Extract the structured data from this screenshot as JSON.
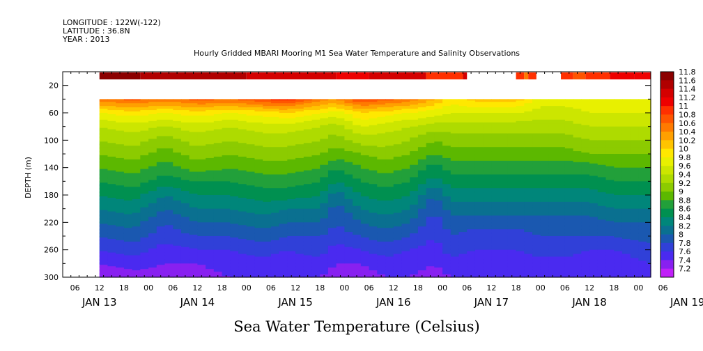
{
  "header": {
    "longitude": "LONGITUDE : 122W(-122)",
    "latitude": "LATITUDE : 36.8N",
    "year": "YEAR : 2013"
  },
  "chart_data": {
    "type": "heatmap",
    "title": "Hourly Gridded MBARI Mooring M1 Sea Water Temperature and Salinity Observations",
    "xlabel": "",
    "ylabel": "DEPTH (m)",
    "colorbar_title": "Sea Water Temperature (Celsius)",
    "x_hour_ticks": [
      "06",
      "12",
      "18",
      "00",
      "06",
      "12",
      "18",
      "00",
      "06",
      "12",
      "18",
      "00",
      "06",
      "12",
      "18",
      "00",
      "06",
      "12",
      "18",
      "00",
      "06",
      "12",
      "18",
      "00",
      "06"
    ],
    "x_day_labels": [
      "JAN 13",
      "JAN 14",
      "JAN 15",
      "JAN 16",
      "JAN 17",
      "JAN 18",
      "JAN 19"
    ],
    "x_range_hours_from_jan12_00": [
      3,
      147
    ],
    "data_start_hour": 12,
    "data_end_hour": 147,
    "y_ticks": [
      "20",
      "60",
      "100",
      "140",
      "180",
      "220",
      "260",
      "300"
    ],
    "ylim": [
      300,
      0
    ],
    "depth_levels_m": [
      10,
      40,
      60,
      80,
      100,
      120,
      140,
      160,
      180,
      200,
      220,
      240,
      260,
      280,
      300
    ],
    "colorbar_labels": [
      "11.8",
      "11.6",
      "11.4",
      "11.2",
      "11",
      "10.8",
      "10.6",
      "10.4",
      "10.2",
      "10",
      "9.8",
      "9.6",
      "9.4",
      "9.2",
      "9",
      "8.8",
      "8.6",
      "8.4",
      "8.2",
      "8",
      "7.8",
      "7.6",
      "7.4",
      "7.2"
    ],
    "colorbar_colors": [
      "#8b0000",
      "#b00000",
      "#d40000",
      "#ee0000",
      "#ff3000",
      "#ff5500",
      "#ff7a00",
      "#ffa000",
      "#ffc400",
      "#ffe800",
      "#e8f000",
      "#cce600",
      "#aedb00",
      "#8ccb00",
      "#5cb800",
      "#22a03a",
      "#009050",
      "#00867a",
      "#0a7090",
      "#1a58b0",
      "#3040d8",
      "#4a2af0",
      "#8820f0",
      "#c020f8"
    ],
    "surface_10m_segments": [
      {
        "start_hour": 12,
        "end_hour": 22,
        "temp": 11.8
      },
      {
        "start_hour": 22,
        "end_hour": 48,
        "temp": 11.6
      },
      {
        "start_hour": 48,
        "end_hour": 70,
        "temp": 11.4
      },
      {
        "start_hour": 70,
        "end_hour": 78,
        "temp": 11.2
      },
      {
        "start_hour": 78,
        "end_hour": 92,
        "temp": 11.3
      },
      {
        "start_hour": 92,
        "end_hour": 101,
        "temp": 11.0
      },
      {
        "start_hour": 101,
        "end_hour": 102,
        "temp": 11.3
      },
      {
        "start_hour": 114,
        "end_hour": 116,
        "temp": 10.9
      },
      {
        "start_hour": 116,
        "end_hour": 117,
        "temp": 10.6
      },
      {
        "start_hour": 117,
        "end_hour": 119,
        "temp": 10.9
      },
      {
        "start_hour": 125,
        "end_hour": 128,
        "temp": 11.0
      },
      {
        "start_hour": 128,
        "end_hour": 131,
        "temp": 10.8
      },
      {
        "start_hour": 131,
        "end_hour": 137,
        "temp": 10.9
      },
      {
        "start_hour": 137,
        "end_hour": 143,
        "temp": 11.1
      },
      {
        "start_hour": 143,
        "end_hour": 147,
        "temp": 11.2
      }
    ],
    "profiles": [
      {
        "hour": 12,
        "temps": [
          null,
          10.6,
          9.9,
          9.5,
          9.3,
          9.1,
          8.9,
          8.7,
          8.5,
          8.3,
          8.1,
          7.9,
          7.7,
          7.5,
          7.3
        ]
      },
      {
        "hour": 20,
        "temps": [
          null,
          10.8,
          10.0,
          9.6,
          9.4,
          9.2,
          9.0,
          8.8,
          8.6,
          8.4,
          8.2,
          8.0,
          7.8,
          7.6,
          7.4
        ]
      },
      {
        "hour": 28,
        "temps": [
          null,
          10.6,
          9.9,
          9.5,
          9.2,
          9.0,
          8.8,
          8.6,
          8.3,
          8.1,
          7.9,
          7.8,
          7.6,
          7.5,
          7.4
        ]
      },
      {
        "hour": 36,
        "temps": [
          null,
          10.8,
          10.0,
          9.6,
          9.4,
          9.2,
          9.0,
          8.7,
          8.5,
          8.3,
          8.1,
          7.9,
          7.7,
          7.5,
          7.4
        ]
      },
      {
        "hour": 44,
        "temps": [
          null,
          10.7,
          9.9,
          9.5,
          9.3,
          9.1,
          8.9,
          8.7,
          8.5,
          8.3,
          8.1,
          7.9,
          7.7,
          7.6,
          7.5
        ]
      },
      {
        "hour": 52,
        "temps": [
          null,
          10.9,
          10.0,
          9.6,
          9.4,
          9.2,
          9.0,
          8.8,
          8.6,
          8.4,
          8.2,
          8.0,
          7.8,
          7.6,
          7.5
        ]
      },
      {
        "hour": 58,
        "temps": [
          null,
          11.0,
          10.1,
          9.6,
          9.4,
          9.2,
          9.0,
          8.8,
          8.6,
          8.3,
          8.1,
          7.9,
          7.7,
          7.6,
          7.5
        ]
      },
      {
        "hour": 66,
        "temps": [
          null,
          10.6,
          9.9,
          9.5,
          9.3,
          9.1,
          8.9,
          8.7,
          8.5,
          8.3,
          8.1,
          7.9,
          7.8,
          7.6,
          7.5
        ]
      },
      {
        "hour": 70,
        "temps": [
          null,
          10.5,
          9.8,
          9.4,
          9.2,
          9.0,
          8.7,
          8.5,
          8.2,
          8.0,
          7.9,
          7.8,
          7.6,
          7.5,
          7.4
        ]
      },
      {
        "hour": 76,
        "temps": [
          null,
          10.9,
          10.1,
          9.7,
          9.4,
          9.1,
          8.9,
          8.7,
          8.5,
          8.3,
          8.1,
          7.9,
          7.7,
          7.5,
          7.4
        ]
      },
      {
        "hour": 82,
        "temps": [
          null,
          10.8,
          10.0,
          9.6,
          9.4,
          9.2,
          9.0,
          8.8,
          8.6,
          8.4,
          8.2,
          8.0,
          7.8,
          7.6,
          7.5
        ]
      },
      {
        "hour": 88,
        "temps": [
          null,
          10.6,
          9.9,
          9.5,
          9.3,
          9.1,
          8.9,
          8.7,
          8.5,
          8.3,
          8.1,
          7.9,
          7.7,
          7.6,
          7.5
        ]
      },
      {
        "hour": 94,
        "temps": [
          null,
          10.3,
          9.8,
          9.4,
          9.1,
          8.9,
          8.6,
          8.4,
          8.1,
          7.9,
          7.8,
          7.7,
          7.6,
          7.5,
          7.4
        ]
      },
      {
        "hour": 98,
        "temps": [
          null,
          10.0,
          9.7,
          9.4,
          9.2,
          9.0,
          8.8,
          8.6,
          8.4,
          8.2,
          8.0,
          7.9,
          7.8,
          7.6,
          7.5
        ]
      },
      {
        "hour": 104,
        "temps": [
          null,
          10.2,
          9.7,
          9.4,
          9.2,
          9.0,
          8.8,
          8.6,
          8.4,
          8.2,
          8.0,
          7.8,
          7.7,
          7.6,
          7.5
        ]
      },
      {
        "hour": 114,
        "temps": [
          null,
          10.2,
          9.7,
          9.4,
          9.2,
          9.0,
          8.8,
          8.6,
          8.4,
          8.2,
          8.0,
          7.8,
          7.7,
          7.6,
          7.5
        ]
      },
      {
        "hour": 120,
        "temps": [
          null,
          9.8,
          9.6,
          9.4,
          9.2,
          9.0,
          8.8,
          8.6,
          8.4,
          8.2,
          8.0,
          7.9,
          7.8,
          7.6,
          7.5
        ]
      },
      {
        "hour": 126,
        "temps": [
          null,
          9.8,
          9.6,
          9.4,
          9.2,
          9.0,
          8.8,
          8.6,
          8.4,
          8.2,
          8.0,
          7.9,
          7.8,
          7.6,
          7.5
        ]
      },
      {
        "hour": 132,
        "temps": [
          null,
          9.9,
          9.7,
          9.5,
          9.3,
          9.1,
          8.8,
          8.6,
          8.4,
          8.2,
          8.0,
          7.9,
          7.7,
          7.6,
          7.5
        ]
      },
      {
        "hour": 138,
        "temps": [
          null,
          9.9,
          9.7,
          9.5,
          9.3,
          9.1,
          8.9,
          8.7,
          8.5,
          8.3,
          8.1,
          7.9,
          7.7,
          7.6,
          7.5
        ]
      },
      {
        "hour": 147,
        "temps": [
          null,
          9.9,
          9.7,
          9.5,
          9.3,
          9.1,
          8.9,
          8.7,
          8.5,
          8.3,
          8.1,
          8.0,
          7.8,
          7.7,
          7.6
        ]
      }
    ]
  }
}
